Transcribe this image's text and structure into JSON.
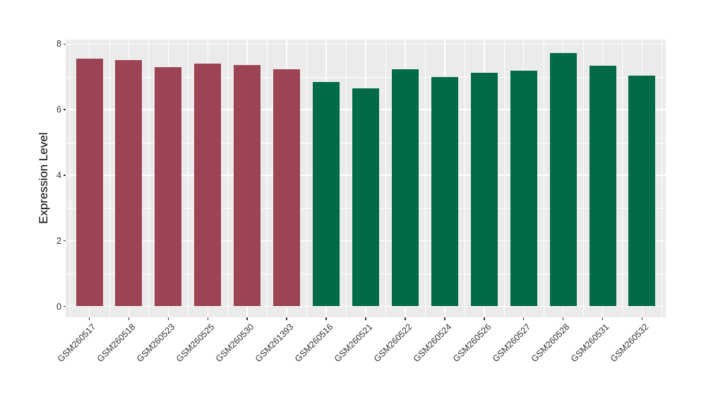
{
  "chart_data": {
    "type": "bar",
    "title": "",
    "xlabel": "",
    "ylabel": "Expression Level",
    "ylim": [
      0,
      8
    ],
    "y_major_ticks": [
      0,
      2,
      4,
      6,
      8
    ],
    "y_minor_gridlines": [
      1,
      3,
      5,
      7
    ],
    "grid": "on",
    "legend": "none",
    "categories": [
      "GSM260517",
      "GSM260518",
      "GSM260523",
      "GSM260525",
      "GSM260530",
      "GSM261393",
      "GSM260516",
      "GSM260521",
      "GSM260522",
      "GSM260524",
      "GSM260526",
      "GSM260527",
      "GSM260528",
      "GSM260531",
      "GSM260532"
    ],
    "values": [
      7.55,
      7.51,
      7.29,
      7.4,
      7.35,
      7.24,
      6.84,
      6.65,
      7.22,
      6.99,
      7.13,
      7.19,
      7.73,
      7.33,
      7.03
    ],
    "bar_fill_colors": [
      "#9C4453",
      "#9C4453",
      "#9C4453",
      "#9C4453",
      "#9C4453",
      "#9C4453",
      "#016A49",
      "#016A49",
      "#016A49",
      "#016A49",
      "#016A49",
      "#016A49",
      "#016A49",
      "#016A49",
      "#016A49"
    ],
    "group_colors": {
      "group1": "#9C4453",
      "group2": "#016A49"
    },
    "panel_background": "#EBEBEB",
    "gridline_color": "#FFFFFF",
    "tick_mark_color": "#333333",
    "tick_label_color": "#333333",
    "axis_title_color": "#000000"
  }
}
